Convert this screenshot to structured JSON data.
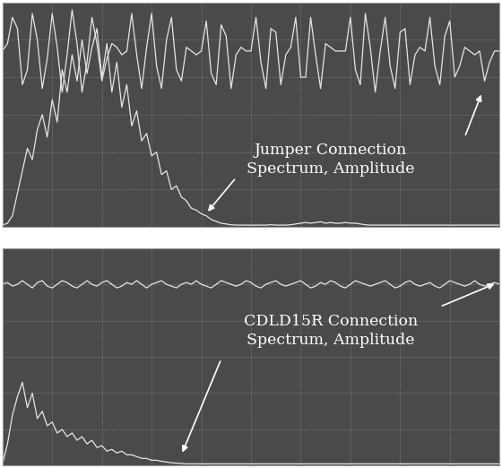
{
  "chart_data": [
    {
      "type": "line",
      "annotation": "Jumper Connection\nSpectrum, Amplitude",
      "x": [
        0.0,
        0.1,
        0.2,
        0.3,
        0.4,
        0.5,
        0.6,
        0.7,
        0.8,
        0.9,
        1.0,
        1.1,
        1.2,
        1.3,
        1.4,
        1.5,
        1.6,
        1.7,
        1.8,
        1.9,
        2.0,
        2.1,
        2.2,
        2.3,
        2.4,
        2.5,
        2.6,
        2.7,
        2.8,
        2.9,
        3.0,
        3.1,
        3.2,
        3.3,
        3.4,
        3.5,
        3.6,
        3.7,
        3.8,
        3.9,
        4.0,
        4.1,
        4.2,
        4.3,
        4.4,
        4.5,
        4.6,
        4.7,
        4.8,
        4.9,
        5.0,
        5.1,
        5.2,
        5.3,
        5.4,
        5.5,
        5.6,
        5.7,
        5.8,
        5.9,
        6.0,
        6.1,
        6.2,
        6.3,
        6.4,
        6.5,
        6.6,
        6.7,
        6.8,
        6.9,
        7.0,
        7.1,
        7.2,
        7.3,
        7.4,
        7.5,
        7.6,
        7.7,
        7.8,
        7.9,
        8.0,
        8.1,
        8.2,
        8.3,
        8.4,
        8.5,
        8.6,
        8.7,
        8.8,
        8.9,
        9.0,
        9.1,
        9.2,
        9.3,
        9.4,
        9.5,
        9.6,
        9.7,
        9.8,
        9.9,
        10.0
      ],
      "xlim": [
        0,
        10
      ],
      "ylim": [
        0,
        6
      ],
      "xticks": [
        0,
        1,
        2,
        3,
        4,
        5,
        6,
        7,
        8,
        9,
        10
      ],
      "yticks": [
        0,
        1,
        2,
        3,
        4,
        5,
        6
      ],
      "grid": true,
      "tick_labels": false,
      "series": [
        {
          "color": "#e6e6e6",
          "values": [
            4.7,
            4.9,
            5.6,
            5.3,
            3.8,
            4.2,
            5.7,
            5.0,
            3.7,
            4.5,
            5.7,
            4.8,
            3.6,
            4.6,
            5.8,
            4.9,
            3.6,
            4.4,
            5.6,
            4.9,
            3.9,
            4.5,
            4.9,
            4.8,
            4.6,
            4.7,
            5.7,
            4.6,
            3.7,
            4.8,
            5.7,
            4.3,
            3.7,
            5.0,
            5.6,
            4.2,
            3.9,
            4.8,
            4.7,
            4.6,
            4.7,
            5.5,
            4.1,
            3.8,
            5.4,
            5.1,
            3.7,
            4.6,
            4.8,
            4.7,
            4.7,
            5.6,
            4.4,
            3.7,
            5.3,
            5.2,
            3.8,
            4.6,
            4.8,
            5.6,
            4.0,
            4.0,
            5.6,
            4.6,
            3.7,
            4.9,
            4.8,
            4.7,
            4.7,
            4.7,
            5.6,
            4.2,
            3.8,
            5.7,
            4.8,
            3.6,
            4.7,
            5.6,
            4.3,
            3.7,
            5.2,
            5.3,
            3.8,
            4.6,
            4.8,
            4.7,
            5.6,
            4.3,
            3.8,
            5.1,
            5.5,
            4.0,
            4.3,
            4.8,
            4.7,
            4.6,
            4.7,
            3.9,
            4.4,
            4.7,
            4.7
          ]
        },
        {
          "color": "#e6e6e6",
          "values": [
            0.05,
            0.1,
            0.3,
            0.9,
            1.5,
            2.1,
            1.8,
            2.6,
            3.0,
            2.4,
            3.4,
            2.8,
            4.2,
            3.6,
            4.6,
            3.9,
            5.0,
            4.1,
            4.8,
            5.3,
            4.0,
            4.9,
            3.6,
            4.4,
            3.2,
            3.8,
            2.7,
            3.1,
            2.3,
            2.5,
            1.9,
            2.0,
            1.4,
            1.5,
            1.0,
            1.1,
            0.8,
            0.7,
            0.5,
            0.45,
            0.35,
            0.3,
            0.2,
            0.15,
            0.1,
            0.08,
            0.06,
            0.05,
            0.05,
            0.05,
            0.05,
            0.05,
            0.05,
            0.05,
            0.06,
            0.05,
            0.05,
            0.05,
            0.06,
            0.08,
            0.1,
            0.12,
            0.1,
            0.12,
            0.14,
            0.1,
            0.12,
            0.1,
            0.1,
            0.12,
            0.1,
            0.1,
            0.08,
            0.06,
            0.05,
            0.05,
            0.05,
            0.05,
            0.05,
            0.05,
            0.05,
            0.05,
            0.05,
            0.05,
            0.05,
            0.05,
            0.05,
            0.05,
            0.05,
            0.05,
            0.05,
            0.05,
            0.05,
            0.05,
            0.05,
            0.05,
            0.05,
            0.05,
            0.05,
            0.05,
            0.05
          ]
        }
      ]
    },
    {
      "type": "line",
      "annotation": "CDLD15R Connection\nSpectrum, Amplitude",
      "x": [
        0.0,
        0.1,
        0.2,
        0.3,
        0.4,
        0.5,
        0.6,
        0.7,
        0.8,
        0.9,
        1.0,
        1.1,
        1.2,
        1.3,
        1.4,
        1.5,
        1.6,
        1.7,
        1.8,
        1.9,
        2.0,
        2.1,
        2.2,
        2.3,
        2.4,
        2.5,
        2.6,
        2.7,
        2.8,
        2.9,
        3.0,
        3.1,
        3.2,
        3.3,
        3.4,
        3.5,
        3.6,
        3.7,
        3.8,
        3.9,
        4.0,
        4.1,
        4.2,
        4.3,
        4.4,
        4.5,
        4.6,
        4.7,
        4.8,
        4.9,
        5.0,
        5.1,
        5.2,
        5.3,
        5.4,
        5.5,
        5.6,
        5.7,
        5.8,
        5.9,
        6.0,
        6.1,
        6.2,
        6.3,
        6.4,
        6.5,
        6.6,
        6.7,
        6.8,
        6.9,
        7.0,
        7.1,
        7.2,
        7.3,
        7.4,
        7.5,
        7.6,
        7.7,
        7.8,
        7.9,
        8.0,
        8.1,
        8.2,
        8.3,
        8.4,
        8.5,
        8.6,
        8.7,
        8.8,
        8.9,
        9.0,
        9.1,
        9.2,
        9.3,
        9.4,
        9.5,
        9.6,
        9.7,
        9.8,
        9.9,
        10.0
      ],
      "xlim": [
        0,
        10
      ],
      "ylim": [
        0,
        6
      ],
      "xticks": [
        0,
        1,
        2,
        3,
        4,
        5,
        6,
        7,
        8,
        9,
        10
      ],
      "yticks": [
        0,
        1,
        2,
        3,
        4,
        5,
        6
      ],
      "grid": true,
      "tick_labels": false,
      "series": [
        {
          "color": "#e6e6e6",
          "values": [
            5.0,
            5.05,
            4.95,
            5.0,
            5.1,
            5.0,
            4.9,
            5.05,
            5.1,
            4.95,
            4.9,
            5.0,
            5.1,
            5.05,
            4.95,
            4.9,
            5.0,
            5.1,
            5.0,
            4.95,
            5.05,
            5.1,
            5.0,
            4.9,
            4.95,
            5.05,
            5.0,
            5.1,
            5.0,
            4.9,
            5.0,
            5.05,
            5.1,
            5.0,
            4.95,
            4.9,
            5.0,
            5.05,
            5.0,
            5.1,
            5.0,
            4.95,
            4.9,
            5.0,
            5.1,
            5.05,
            5.0,
            4.95,
            5.0,
            5.1,
            5.05,
            4.95,
            4.9,
            5.0,
            5.05,
            5.1,
            5.0,
            4.95,
            5.0,
            5.05,
            5.1,
            5.0,
            4.9,
            4.95,
            5.05,
            5.0,
            5.1,
            5.05,
            4.95,
            4.9,
            5.0,
            5.1,
            5.05,
            5.0,
            4.95,
            5.0,
            5.05,
            5.1,
            5.0,
            4.9,
            4.95,
            5.05,
            5.1,
            5.0,
            4.95,
            5.0,
            5.05,
            4.95,
            4.9,
            5.0,
            5.1,
            5.05,
            5.0,
            4.95,
            5.0,
            5.1,
            5.0,
            4.95,
            5.0,
            5.05,
            5.0
          ]
        },
        {
          "color": "#e6e6e6",
          "values": [
            0.05,
            0.6,
            1.4,
            1.9,
            2.3,
            1.6,
            2.0,
            1.3,
            1.5,
            1.1,
            1.2,
            0.9,
            1.0,
            0.8,
            0.9,
            0.7,
            0.8,
            0.6,
            0.7,
            0.5,
            0.55,
            0.4,
            0.45,
            0.35,
            0.4,
            0.3,
            0.3,
            0.25,
            0.2,
            0.2,
            0.15,
            0.15,
            0.12,
            0.1,
            0.08,
            0.07,
            0.06,
            0.05,
            0.05,
            0.05,
            0.05,
            0.05,
            0.05,
            0.05,
            0.05,
            0.05,
            0.05,
            0.05,
            0.05,
            0.05,
            0.05,
            0.05,
            0.05,
            0.05,
            0.05,
            0.05,
            0.05,
            0.05,
            0.05,
            0.05,
            0.05,
            0.05,
            0.05,
            0.05,
            0.05,
            0.05,
            0.05,
            0.05,
            0.05,
            0.05,
            0.05,
            0.05,
            0.05,
            0.05,
            0.05,
            0.05,
            0.05,
            0.05,
            0.05,
            0.05,
            0.05,
            0.05,
            0.05,
            0.05,
            0.05,
            0.05,
            0.05,
            0.05,
            0.05,
            0.05,
            0.05,
            0.05,
            0.05,
            0.05,
            0.05,
            0.05,
            0.05,
            0.05,
            0.05,
            0.05,
            0.05
          ]
        }
      ]
    }
  ]
}
